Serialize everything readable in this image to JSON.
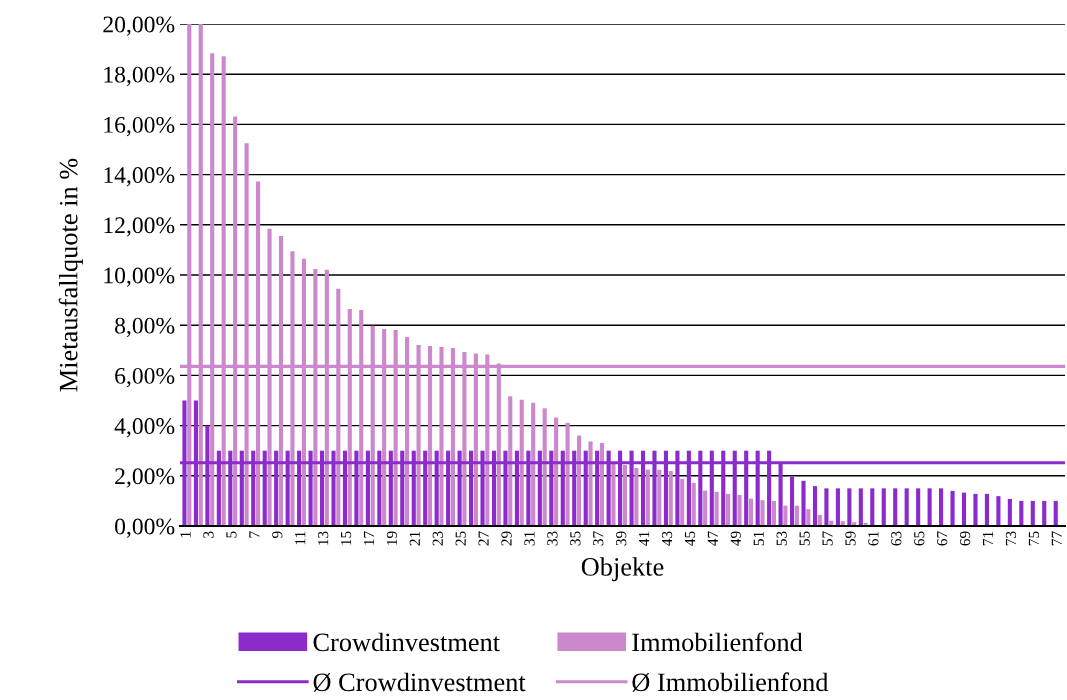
{
  "chart_data": {
    "type": "bar",
    "xlabel": "Objekte",
    "ylabel": "Mietausfallquote in %",
    "categories": [
      "1",
      null,
      "3",
      null,
      "5",
      null,
      "7",
      null,
      "9",
      null,
      "11",
      null,
      "13",
      null,
      "15",
      null,
      "17",
      null,
      "19",
      null,
      "21",
      null,
      "23",
      null,
      "25",
      null,
      "27",
      null,
      "29",
      null,
      "31",
      null,
      "33",
      null,
      "35",
      null,
      "37",
      null,
      "39",
      null,
      "41",
      null,
      "43",
      null,
      "45",
      null,
      "47",
      null,
      "49",
      null,
      "51",
      null,
      "53",
      null,
      "55",
      null,
      "57",
      null,
      "59",
      null,
      "61",
      null,
      "63",
      null,
      "65",
      null,
      "67",
      null,
      "69",
      null,
      "71",
      null,
      "73",
      null,
      "75",
      null,
      "77"
    ],
    "series": [
      {
        "name": "Crowdinvestment",
        "color": "#8b2bcb",
        "values": [
          5,
          5,
          4,
          3,
          3,
          3,
          3,
          3,
          3,
          3,
          3,
          3,
          3,
          3,
          3,
          3,
          3,
          3,
          3,
          3,
          3,
          3,
          3,
          3,
          3,
          3,
          3,
          3,
          3,
          3,
          3,
          3,
          3,
          3,
          3,
          3,
          3,
          3,
          3,
          3,
          3,
          3,
          3,
          3,
          3,
          3,
          3,
          3,
          3,
          3,
          3,
          3,
          2.52,
          1.97,
          1.8,
          1.59,
          1.5,
          1.5,
          1.5,
          1.5,
          1.5,
          1.5,
          1.5,
          1.5,
          1.5,
          1.5,
          1.5,
          1.4,
          1.33,
          1.28,
          1.28,
          1.19,
          1.08,
          1.0,
          1.0,
          1.0,
          1.0
        ]
      },
      {
        "name": "Immobilienfond",
        "color": "#cc88cc",
        "values": [
          20,
          20,
          18.83,
          18.72,
          16.31,
          15.25,
          13.73,
          11.84,
          11.55,
          10.95,
          10.65,
          10.24,
          10.21,
          9.45,
          8.65,
          8.61,
          7.98,
          7.85,
          7.81,
          7.53,
          7.21,
          7.17,
          7.13,
          7.09,
          6.93,
          6.87,
          6.83,
          6.47,
          5.17,
          5.03,
          4.91,
          4.69,
          4.32,
          4.11,
          3.6,
          3.37,
          3.31,
          2.47,
          2.43,
          2.31,
          2.25,
          2.24,
          2.19,
          1.88,
          1.72,
          1.41,
          1.36,
          1.28,
          1.24,
          1.09,
          1.03,
          1.0,
          0.81,
          0.81,
          0.67,
          0.44,
          0.21,
          0.19,
          0.15,
          0.12,
          0,
          0,
          0,
          0,
          0,
          0,
          0,
          0,
          0,
          0,
          0,
          0,
          0,
          0,
          0,
          0,
          0
        ]
      }
    ],
    "ref_lines": [
      {
        "axis": "y",
        "value": 2.52,
        "label": "Ø Crowdinvestment",
        "color": "#8b2bcb"
      },
      {
        "axis": "y",
        "value": 6.36,
        "label": "Ø Immobilienfond",
        "color": "#cc88cc"
      }
    ],
    "ylim": [
      0,
      20
    ],
    "yticks": [
      {
        "value": 0,
        "label": "0,00%"
      },
      {
        "value": 2,
        "label": "2,00%"
      },
      {
        "value": 4,
        "label": "4,00%"
      },
      {
        "value": 6,
        "label": "6,00%"
      },
      {
        "value": 8,
        "label": "8,00%"
      },
      {
        "value": 10,
        "label": "10,00%"
      },
      {
        "value": 12,
        "label": "12,00%"
      },
      {
        "value": 14,
        "label": "14,00%"
      },
      {
        "value": 16,
        "label": "16,00%"
      },
      {
        "value": 18,
        "label": "18,00%"
      },
      {
        "value": 20,
        "label": "20,00%"
      }
    ],
    "grid": "y",
    "legend": "bottom"
  }
}
